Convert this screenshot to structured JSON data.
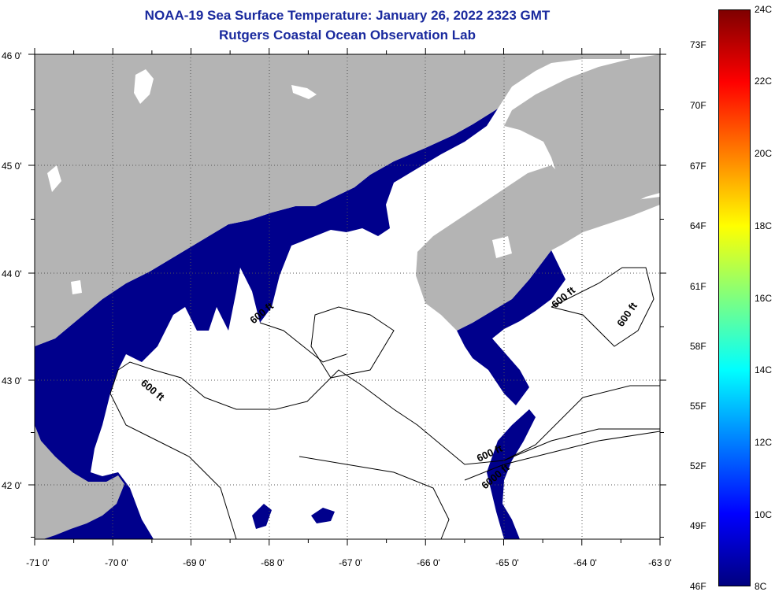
{
  "title_line1": "NOAA-19 Sea Surface Temperature:  January 26, 2022 2323 GMT",
  "title_line2": "Rutgers Coastal Ocean Observation Lab",
  "map": {
    "lon_ticks": [
      "-71 0'",
      "-70 0'",
      "-69 0'",
      "-68 0'",
      "-67 0'",
      "-66 0'",
      "-65 0'",
      "-64 0'",
      "-63 0'"
    ],
    "lat_ticks": [
      "46 0'",
      "45 0'",
      "44 0'",
      "43 0'",
      "42 0'"
    ],
    "contour_labels": [
      "600 ft",
      "600 ft",
      "600 ft",
      "600 ft",
      "600 ft",
      "6000 ft"
    ],
    "colors": {
      "land": "#b4b4b4",
      "cold_water": "#00008c",
      "no_data": "#ffffff"
    }
  },
  "colorbar": {
    "celsius": [
      "24C",
      "22C",
      "20C",
      "18C",
      "16C",
      "14C",
      "12C",
      "10C",
      "8C"
    ],
    "fahrenheit": [
      "73F",
      "70F",
      "67F",
      "64F",
      "61F",
      "58F",
      "55F",
      "52F",
      "49F",
      "46F"
    ],
    "gradient": [
      "#00007f",
      "#0000ff",
      "#007fff",
      "#00ffff",
      "#7fff7f",
      "#ffff00",
      "#ff7f00",
      "#ff0000",
      "#7f0000"
    ]
  }
}
